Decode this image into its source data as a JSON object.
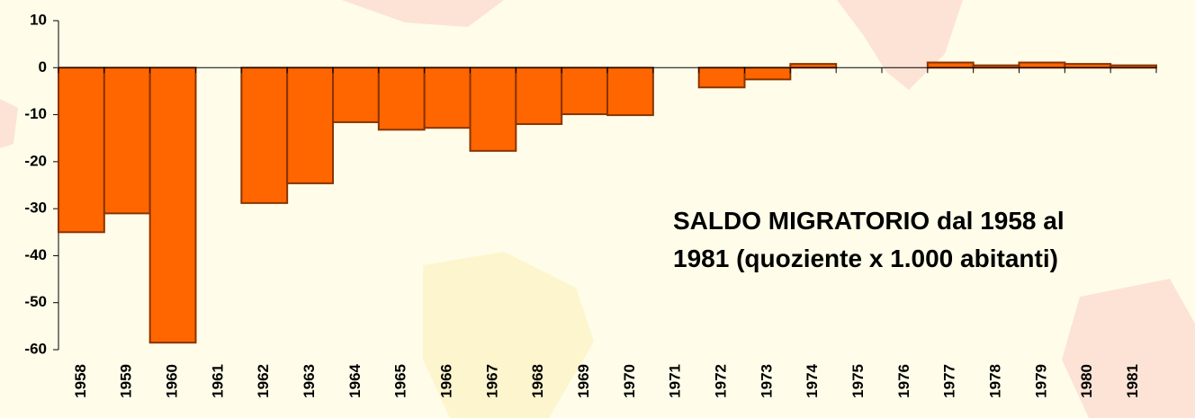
{
  "chart_data": {
    "type": "bar",
    "title": [
      "SALDO MIGRATORIO dal 1958 al",
      "1981 (quoziente x 1.000 abitanti)"
    ],
    "categories": [
      "1958",
      "1959",
      "1960",
      "1961",
      "1962",
      "1963",
      "1964",
      "1965",
      "1966",
      "1967",
      "1968",
      "1969",
      "1970",
      "1971",
      "1972",
      "1973",
      "1974",
      "1975",
      "1976",
      "1977",
      "1978",
      "1979",
      "1980",
      "1981"
    ],
    "values": [
      -35,
      -31,
      -58.5,
      null,
      -28.8,
      -24.6,
      -11.6,
      -13.2,
      -12.8,
      -17.7,
      -12,
      -9.9,
      -10.1,
      null,
      -4.2,
      -2.5,
      0.8,
      null,
      null,
      1.1,
      0.5,
      1.1,
      0.8,
      0.5
    ],
    "color": "#ff6600",
    "ylim": [
      -60,
      10
    ],
    "yticks": [
      -60,
      -50,
      -40,
      -30,
      -20,
      -10,
      0,
      10
    ]
  }
}
